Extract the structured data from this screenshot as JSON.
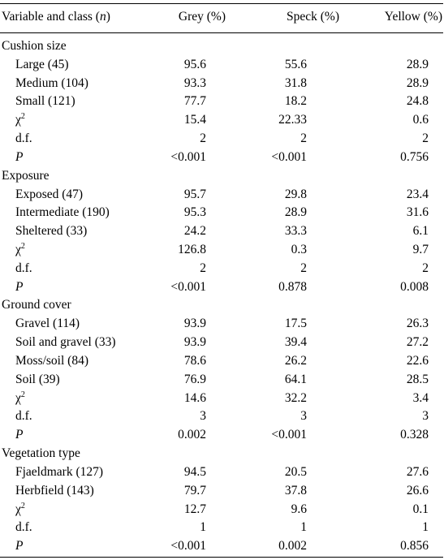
{
  "header": {
    "variable": "Variable and class (",
    "n": "n",
    "variable_close": ")",
    "grey": "Grey (%)",
    "speck": "Speck (%)",
    "yellow": "Yellow (%)"
  },
  "sections": [
    {
      "title": "Cushion size",
      "rows": [
        {
          "label": "Large (45)",
          "grey": "95.6",
          "speck": "55.6",
          "yellow": "28.9"
        },
        {
          "label": "Medium (104)",
          "grey": "93.3",
          "speck": "31.8",
          "yellow": "28.9"
        },
        {
          "label": "Small (121)",
          "grey": "77.7",
          "speck": "18.2",
          "yellow": "24.8"
        },
        {
          "label": "χ",
          "sup": "2",
          "grey": "15.4",
          "speck": "22.33",
          "yellow": "0.6"
        },
        {
          "label": "d.f.",
          "grey": "2",
          "speck": "2",
          "yellow": "2"
        },
        {
          "label": "P",
          "italic": true,
          "grey": "<0.001",
          "speck": "<0.001",
          "yellow": "0.756"
        }
      ]
    },
    {
      "title": "Exposure",
      "rows": [
        {
          "label": "Exposed (47)",
          "grey": "95.7",
          "speck": "29.8",
          "yellow": "23.4"
        },
        {
          "label": "Intermediate (190)",
          "grey": "95.3",
          "speck": "28.9",
          "yellow": "31.6"
        },
        {
          "label": "Sheltered (33)",
          "grey": "24.2",
          "speck": "33.3",
          "yellow": "6.1"
        },
        {
          "label": "χ",
          "sup": "2",
          "grey": "126.8",
          "speck": "0.3",
          "yellow": "9.7"
        },
        {
          "label": "d.f.",
          "grey": "2",
          "speck": "2",
          "yellow": "2"
        },
        {
          "label": "P",
          "italic": true,
          "grey": "<0.001",
          "speck": "0.878",
          "yellow": "0.008"
        }
      ]
    },
    {
      "title": "Ground cover",
      "rows": [
        {
          "label": "Gravel (114)",
          "grey": "93.9",
          "speck": "17.5",
          "yellow": "26.3"
        },
        {
          "label": "Soil and gravel (33)",
          "grey": "93.9",
          "speck": "39.4",
          "yellow": "27.2"
        },
        {
          "label": "Moss/soil (84)",
          "grey": "78.6",
          "speck": "26.2",
          "yellow": "22.6"
        },
        {
          "label": "Soil (39)",
          "grey": "76.9",
          "speck": "64.1",
          "yellow": "28.5"
        },
        {
          "label": "χ",
          "sup": "2",
          "grey": "14.6",
          "speck": "32.2",
          "yellow": "3.4"
        },
        {
          "label": "d.f.",
          "grey": "3",
          "speck": "3",
          "yellow": "3"
        },
        {
          "label": "P",
          "italic": true,
          "grey": "0.002",
          "speck": "<0.001",
          "yellow": "0.328"
        }
      ]
    },
    {
      "title": "Vegetation type",
      "rows": [
        {
          "label": "Fjaeldmark (127)",
          "grey": "94.5",
          "speck": "20.5",
          "yellow": "27.6"
        },
        {
          "label": "Herbfield (143)",
          "grey": "79.7",
          "speck": "37.8",
          "yellow": "26.6"
        },
        {
          "label": "χ",
          "sup": "2",
          "grey": "12.7",
          "speck": "9.6",
          "yellow": "0.1"
        },
        {
          "label": "d.f.",
          "grey": "1",
          "speck": "1",
          "yellow": "1"
        },
        {
          "label": "P",
          "italic": true,
          "grey": "<0.001",
          "speck": "0.002",
          "yellow": "0.856"
        }
      ]
    }
  ]
}
